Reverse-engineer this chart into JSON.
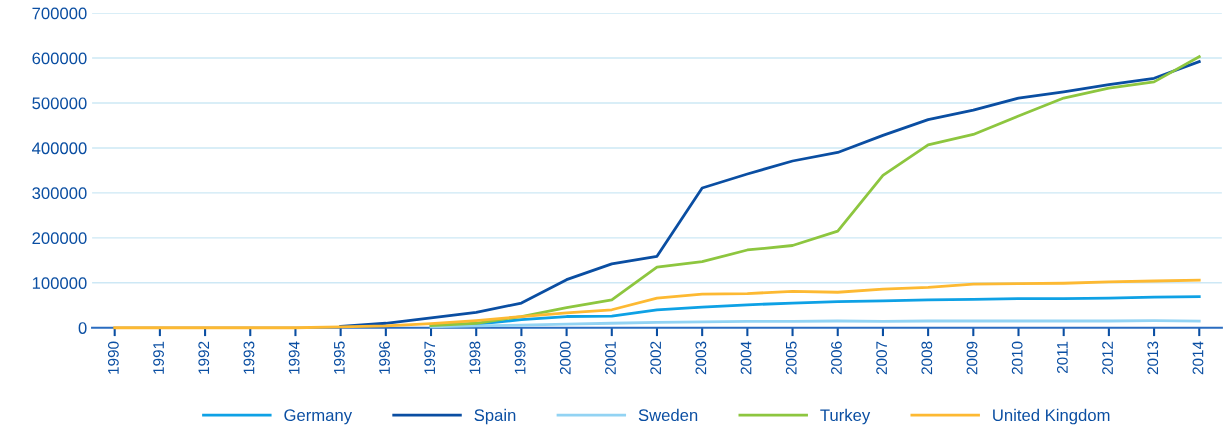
{
  "chart_data": {
    "type": "line",
    "categories": [
      "1990",
      "1991",
      "1992",
      "1993",
      "1994",
      "1995",
      "1996",
      "1997",
      "1998",
      "1999",
      "2000",
      "2001",
      "2002",
      "2003",
      "2004",
      "2005",
      "2006",
      "2007",
      "2008",
      "2009",
      "2010",
      "2011",
      "2012",
      "2013",
      "2014"
    ],
    "series": [
      {
        "name": "Germany",
        "color": "#0ea1e5",
        "values": [
          null,
          null,
          null,
          null,
          null,
          null,
          null,
          4000,
          8000,
          18000,
          25000,
          26000,
          40000,
          46000,
          51000,
          55000,
          58000,
          60000,
          62000,
          63000,
          65000,
          65000,
          66000,
          68000,
          69000
        ]
      },
      {
        "name": "Spain",
        "color": "#0a4ea2",
        "values": [
          null,
          null,
          null,
          null,
          null,
          3000,
          10000,
          22000,
          34000,
          55000,
          107000,
          142000,
          159000,
          311000,
          342000,
          371000,
          390000,
          428000,
          463000,
          484000,
          511000,
          525000,
          541000,
          555000,
          592000
        ]
      },
      {
        "name": "Sweden",
        "color": "#92d3f3",
        "values": [
          null,
          null,
          null,
          null,
          null,
          null,
          null,
          2000,
          4000,
          6000,
          8000,
          10000,
          12000,
          13000,
          14000,
          14000,
          15000,
          14000,
          15000,
          15000,
          15000,
          15000,
          15000,
          16000,
          15000
        ]
      },
      {
        "name": "Turkey",
        "color": "#8dc63f",
        "values": [
          null,
          null,
          null,
          null,
          null,
          null,
          null,
          5000,
          10000,
          25000,
          45000,
          62000,
          135000,
          147000,
          173000,
          183000,
          215000,
          339000,
          407000,
          430000,
          471000,
          511000,
          533000,
          547000,
          603000
        ]
      },
      {
        "name": "United Kingdom",
        "color": "#fdb932",
        "values": [
          0,
          0,
          0,
          0,
          0,
          2000,
          4000,
          9000,
          16000,
          25000,
          33000,
          40000,
          66000,
          75000,
          76000,
          81000,
          79000,
          86000,
          90000,
          97000,
          98000,
          99000,
          102000,
          104000,
          106000
        ]
      }
    ],
    "ylim": [
      0,
      700000
    ],
    "yticks": [
      0,
      100000,
      200000,
      300000,
      400000,
      500000,
      600000,
      700000
    ],
    "grid": "y",
    "legend": "bottom",
    "marker": "none",
    "line_style": "solid"
  }
}
